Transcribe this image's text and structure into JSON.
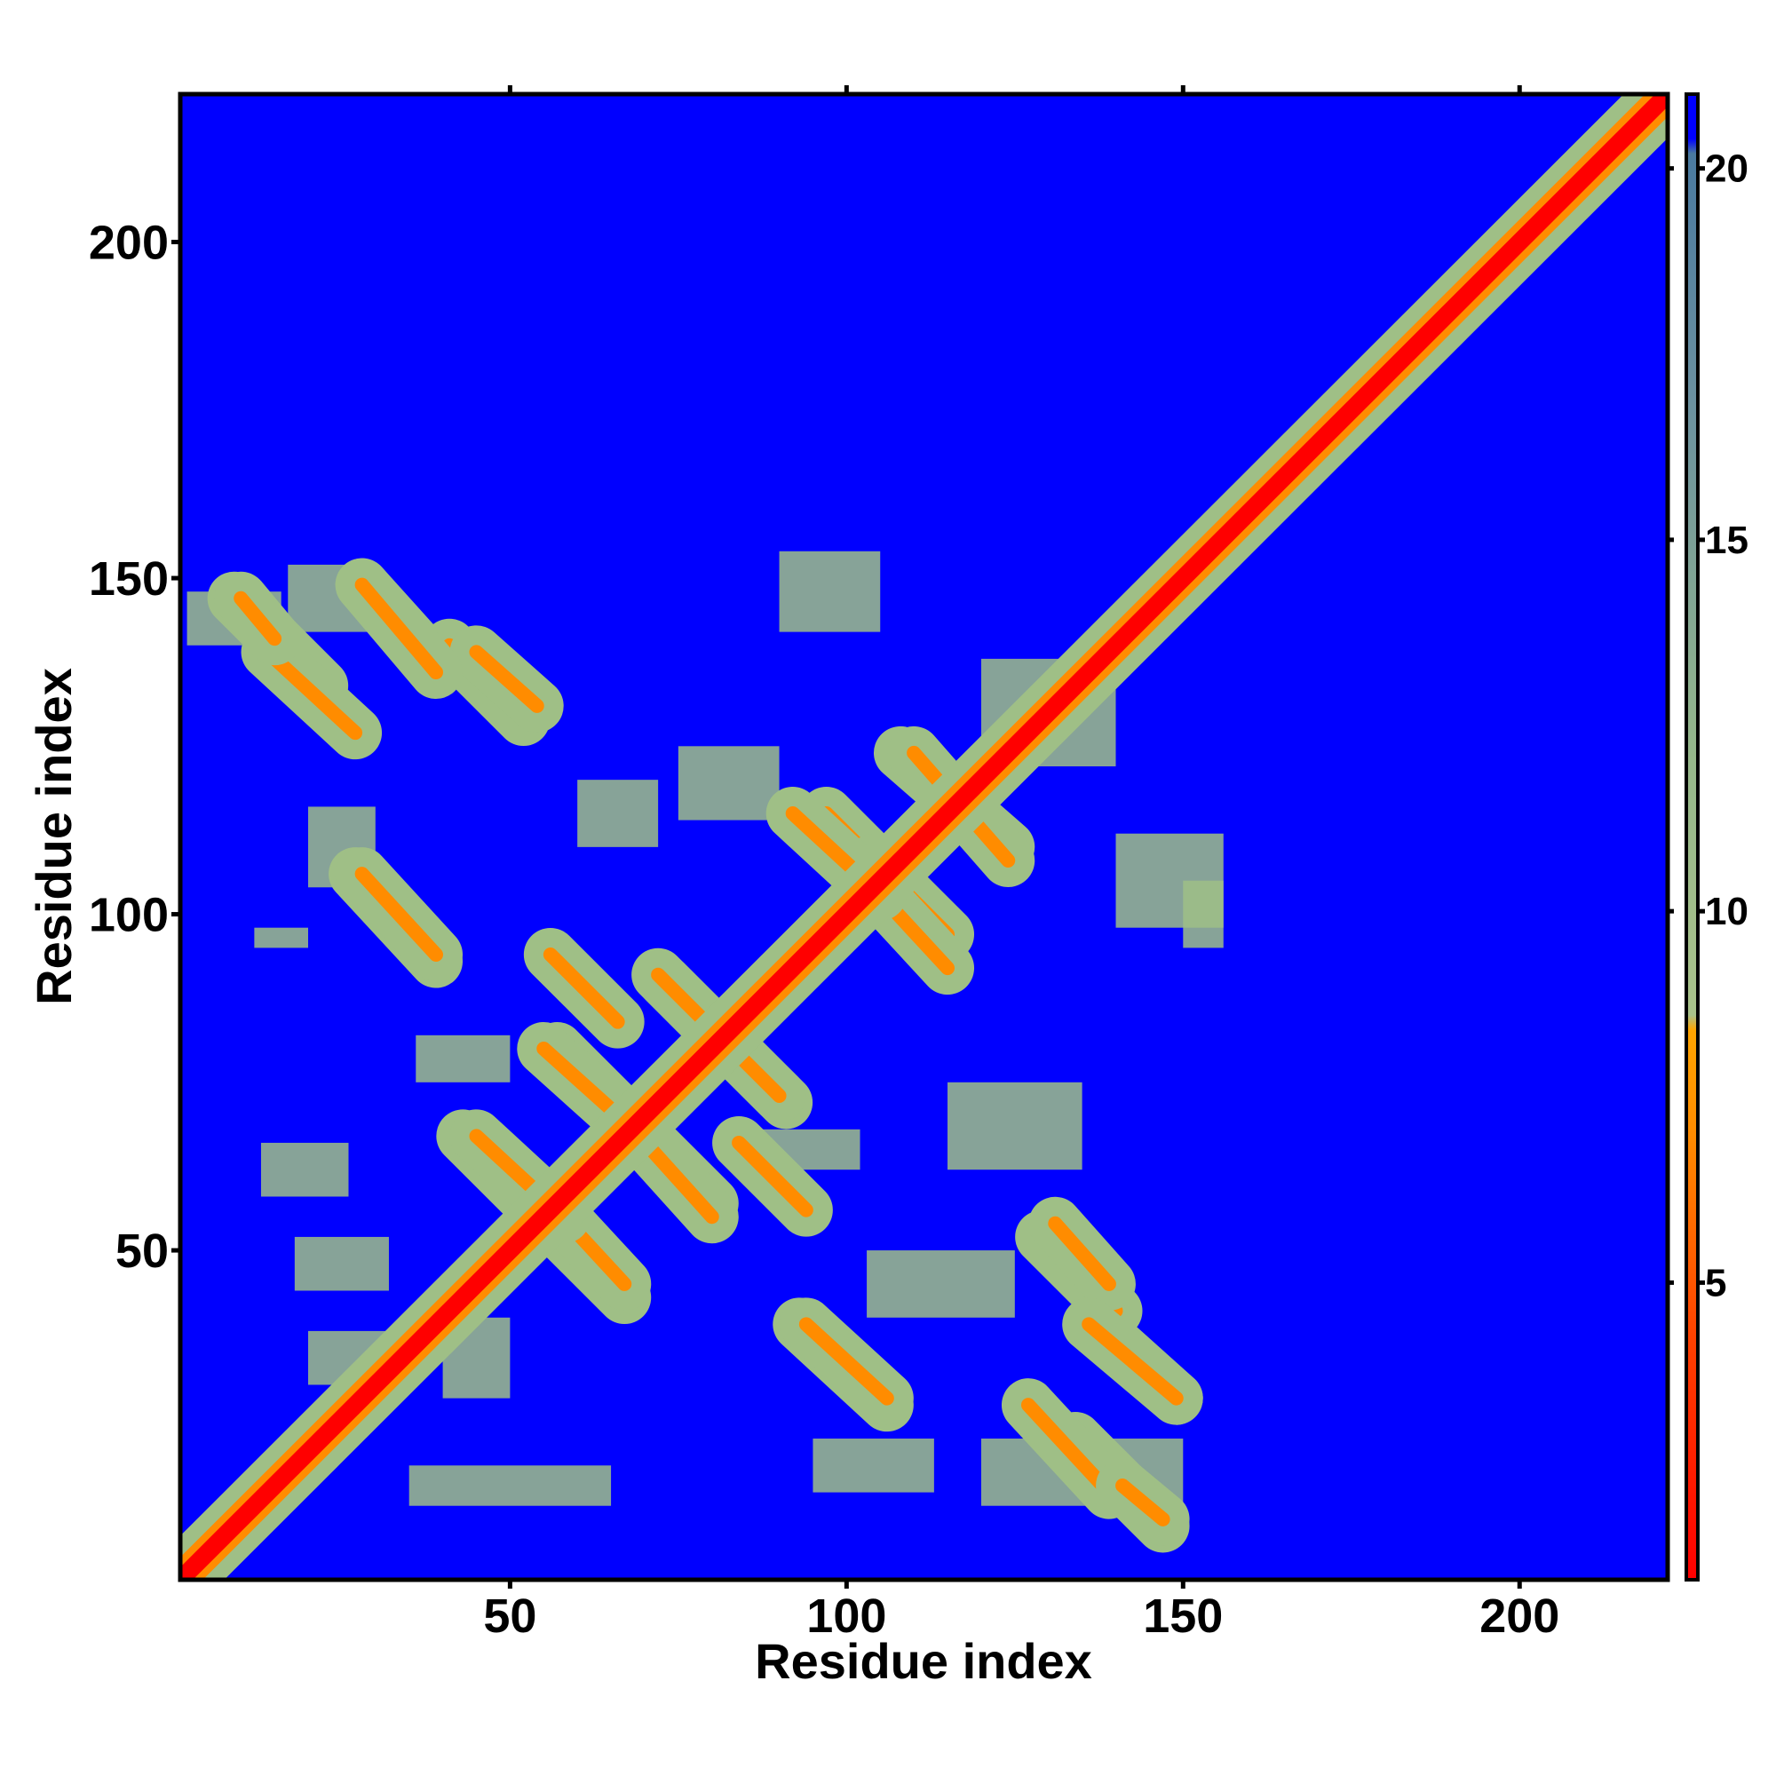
{
  "chart_data": {
    "type": "heatmap",
    "title": "",
    "xlabel": "Residue index",
    "ylabel": "Residue index",
    "xlim": [
      1,
      222
    ],
    "ylim": [
      1,
      222
    ],
    "x_ticks": [
      50,
      100,
      150,
      200
    ],
    "y_ticks": [
      50,
      100,
      150,
      200
    ],
    "colorbar": {
      "range": [
        1,
        21
      ],
      "ticks": [
        5,
        10,
        15,
        20
      ],
      "colors": {
        "low": "#ff0000",
        "mid_low": "#ff8c00",
        "mid": "#9fbf86",
        "high": "#4a7a9a",
        "background": "#0000ff"
      }
    },
    "diagonal_band": {
      "start": 1,
      "end": 222
    },
    "contacts_region_max_residue": 155,
    "antidiagonal_strands": [
      [
        9,
        147,
        22,
        134
      ],
      [
        28,
        149,
        37,
        139
      ],
      [
        41,
        140,
        52,
        129
      ],
      [
        27,
        106,
        39,
        93
      ],
      [
        56,
        94,
        66,
        84
      ],
      [
        57,
        80,
        68,
        69
      ],
      [
        43,
        67,
        56,
        54
      ],
      [
        55,
        58,
        67,
        45
      ],
      [
        71,
        65,
        80,
        55
      ],
      [
        73,
        90,
        91,
        72
      ],
      [
        97,
        115,
        108,
        104
      ],
      [
        103,
        105,
        115,
        92
      ],
      [
        108,
        124,
        124,
        110
      ],
      [
        94,
        39,
        106,
        28
      ],
      [
        131,
        54,
        139,
        45
      ],
      [
        136,
        39,
        149,
        28
      ],
      [
        127,
        27,
        139,
        14
      ],
      [
        141,
        15,
        147,
        10
      ]
    ],
    "halo_blocks": [
      [
        2,
        148,
        16,
        140
      ],
      [
        17,
        152,
        30,
        142
      ],
      [
        20,
        116,
        30,
        104
      ],
      [
        12,
        98,
        20,
        95
      ],
      [
        90,
        154,
        105,
        142
      ],
      [
        85,
        68,
        102,
        62
      ],
      [
        36,
        82,
        50,
        75
      ],
      [
        13,
        66,
        26,
        58
      ],
      [
        18,
        52,
        32,
        44
      ],
      [
        35,
        18,
        65,
        12
      ],
      [
        95,
        22,
        113,
        14
      ],
      [
        120,
        22,
        150,
        12
      ],
      [
        150,
        105,
        156,
        95
      ],
      [
        120,
        138,
        140,
        122
      ],
      [
        40,
        40,
        50,
        28
      ],
      [
        20,
        38,
        34,
        30
      ],
      [
        60,
        120,
        72,
        110
      ],
      [
        75,
        125,
        90,
        114
      ],
      [
        140,
        112,
        156,
        98
      ],
      [
        115,
        75,
        135,
        62
      ],
      [
        103,
        50,
        125,
        40
      ]
    ]
  }
}
